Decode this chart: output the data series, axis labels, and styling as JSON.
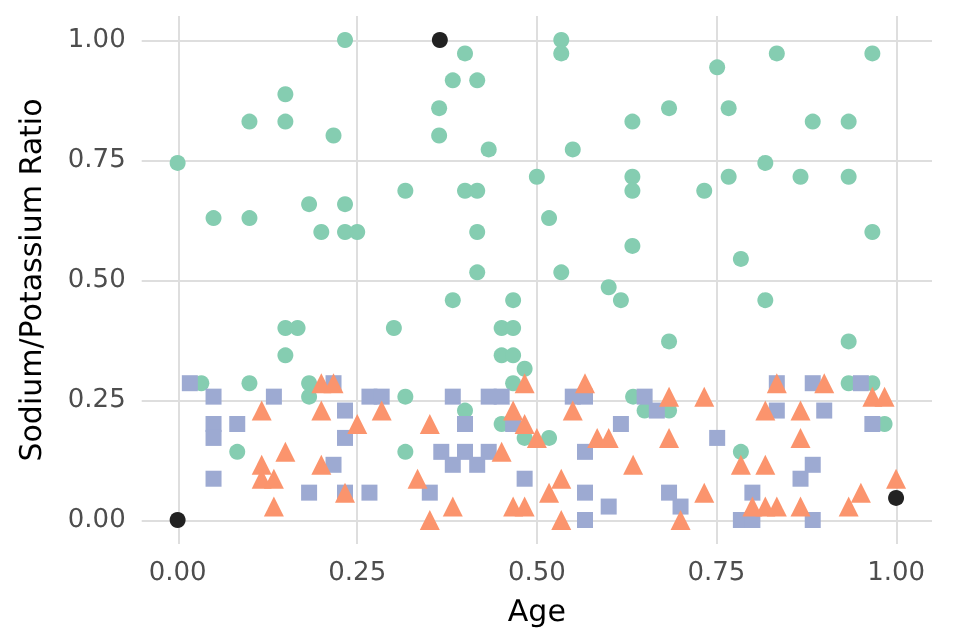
{
  "chart_data": {
    "type": "scatter",
    "xlabel": "Age",
    "ylabel": "Sodium/Potassium Ratio",
    "xlim": [
      -0.05,
      1.05
    ],
    "ylim": [
      -0.05,
      1.05
    ],
    "xticks": [
      {
        "value": 0,
        "label": "0.00"
      },
      {
        "value": 0.25,
        "label": "0.25"
      },
      {
        "value": 0.5,
        "label": "0.50"
      },
      {
        "value": 0.75,
        "label": "0.75"
      },
      {
        "value": 1,
        "label": "1.00"
      }
    ],
    "yticks": [
      {
        "value": 0,
        "label": "0.00"
      },
      {
        "value": 0.25,
        "label": "0.25"
      },
      {
        "value": 0.5,
        "label": "0.50"
      },
      {
        "value": 0.75,
        "label": "0.75"
      },
      {
        "value": 1,
        "label": "1.00"
      }
    ],
    "grid": true,
    "series": [
      {
        "color": "#85cdb1",
        "marker": "circle",
        "x": [
          0,
          0.05,
          0.1,
          0.1,
          0.15,
          0.15,
          0.183,
          0.2,
          0.217,
          0.233,
          0.233,
          0.233,
          0.25,
          0.317,
          0.364,
          0.364,
          0.4,
          0.383,
          0.417,
          0.433,
          0.4,
          0.417,
          0.417,
          0.417,
          0.5,
          0.534,
          0.534,
          0.55,
          0.517,
          0.534,
          0.633,
          0.633,
          0.633,
          0.633,
          0.684,
          0.733,
          0.751,
          0.767,
          0.767,
          0.784,
          0.818,
          0.834,
          0.867,
          0.884,
          0.934,
          0.934,
          0.967,
          0.967,
          0.033,
          0.1,
          0.083,
          0.15,
          0.167,
          0.15,
          0.183,
          0.183,
          0.301,
          0.317,
          0.317,
          0.383,
          0.4,
          0.467,
          0.451,
          0.467,
          0.451,
          0.467,
          0.483,
          0.467,
          0.451,
          0.483,
          0.6,
          0.617,
          0.517,
          0.634,
          0.65,
          0.684,
          0.684,
          0.784,
          0.818,
          0.934,
          0.934,
          0.967,
          0.984
        ],
        "values": [
          0.744,
          0.629,
          0.629,
          0.83,
          0.83,
          0.887,
          0.658,
          0.6,
          0.801,
          1.0,
          0.658,
          0.6,
          0.6,
          0.686,
          0.858,
          0.801,
          0.972,
          0.916,
          0.916,
          0.772,
          0.686,
          0.686,
          0.6,
          0.516,
          0.715,
          1.0,
          0.972,
          0.772,
          0.629,
          0.516,
          0.83,
          0.715,
          0.686,
          0.571,
          0.858,
          0.686,
          0.943,
          0.858,
          0.715,
          0.544,
          0.744,
          0.972,
          0.715,
          0.83,
          0.83,
          0.715,
          0.972,
          0.6,
          0.285,
          0.285,
          0.142,
          0.4,
          0.4,
          0.343,
          0.285,
          0.257,
          0.4,
          0.257,
          0.142,
          0.458,
          0.228,
          0.458,
          0.4,
          0.4,
          0.343,
          0.343,
          0.315,
          0.285,
          0.2,
          0.171,
          0.485,
          0.458,
          0.171,
          0.257,
          0.228,
          0.372,
          0.228,
          0.142,
          0.458,
          0.372,
          0.285,
          0.285,
          0.2
        ]
      },
      {
        "color": "#9daad2",
        "marker": "square",
        "x": [
          0.017,
          0.05,
          0.05,
          0.05,
          0.05,
          0.083,
          0.134,
          0.183,
          0.217,
          0.233,
          0.233,
          0.217,
          0.233,
          0.267,
          0.267,
          0.284,
          0.351,
          0.367,
          0.383,
          0.383,
          0.4,
          0.4,
          0.417,
          0.433,
          0.433,
          0.451,
          0.467,
          0.483,
          0.55,
          0.567,
          0.617,
          0.567,
          0.567,
          0.567,
          0.6,
          0.65,
          0.667,
          0.684,
          0.7,
          0.751,
          0.784,
          0.8,
          0.8,
          0.834,
          0.834,
          0.884,
          0.9,
          0.867,
          0.884,
          0.884,
          0.951,
          0.967
        ],
        "values": [
          0.285,
          0.257,
          0.2,
          0.171,
          0.086,
          0.2,
          0.257,
          0.057,
          0.285,
          0.228,
          0.171,
          0.115,
          0.057,
          0.057,
          0.257,
          0.257,
          0.057,
          0.142,
          0.257,
          0.115,
          0.2,
          0.142,
          0.115,
          0.142,
          0.257,
          0.257,
          0.2,
          0.086,
          0.257,
          0.257,
          0.2,
          0.142,
          0.057,
          0,
          0.028,
          0.257,
          0.228,
          0.057,
          0.028,
          0.171,
          0,
          0,
          0.057,
          0.285,
          0.228,
          0.285,
          0.228,
          0.086,
          0.115,
          0,
          0.285,
          0.2
        ]
      },
      {
        "color": "#fb946d",
        "marker": "triangle",
        "x": [
          0.117,
          0.117,
          0.117,
          0.134,
          0.134,
          0.15,
          0.2,
          0.217,
          0.2,
          0.2,
          0.233,
          0.25,
          0.284,
          0.351,
          0.334,
          0.351,
          0.383,
          0.451,
          0.467,
          0.483,
          0.483,
          0.467,
          0.483,
          0.5,
          0.534,
          0.517,
          0.534,
          0.567,
          0.55,
          0.584,
          0.6,
          0.634,
          0.684,
          0.684,
          0.7,
          0.733,
          0.733,
          0.784,
          0.8,
          0.818,
          0.818,
          0.834,
          0.834,
          0.818,
          0.867,
          0.867,
          0.867,
          0.9,
          0.934,
          0.951,
          0.967,
          0.984,
          1.0
        ],
        "values": [
          0.228,
          0.115,
          0.086,
          0.086,
          0.028,
          0.142,
          0.285,
          0.285,
          0.228,
          0.115,
          0.057,
          0.2,
          0.228,
          0.2,
          0.086,
          0,
          0.028,
          0.142,
          0.228,
          0.285,
          0.2,
          0.028,
          0.028,
          0.171,
          0.086,
          0.057,
          0,
          0.285,
          0.228,
          0.171,
          0.171,
          0.115,
          0.257,
          0.171,
          0,
          0.257,
          0.057,
          0.115,
          0.028,
          0.115,
          0.028,
          0.028,
          0.285,
          0.228,
          0.228,
          0.171,
          0.028,
          0.285,
          0.028,
          0.057,
          0.257,
          0.257,
          0.086
        ]
      },
      {
        "color": "#222222",
        "marker": "circle",
        "x": [
          0,
          0.365,
          1.0
        ],
        "values": [
          0,
          1.0,
          0.046
        ]
      }
    ]
  }
}
